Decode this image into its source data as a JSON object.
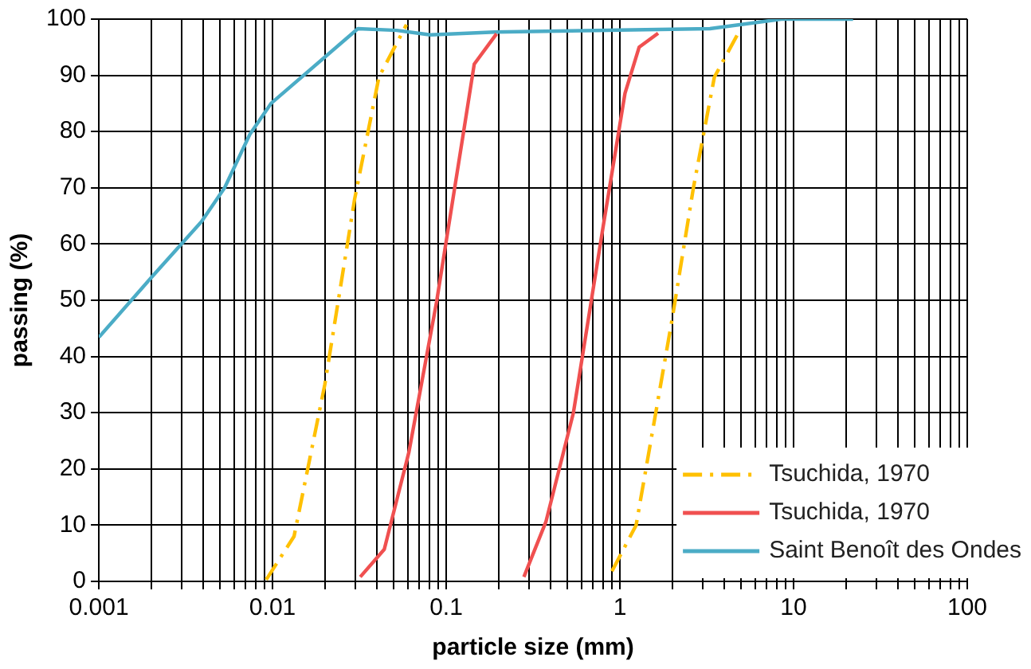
{
  "chart_data": {
    "type": "line",
    "xlabel": "particle size (mm)",
    "ylabel": "passing (%)",
    "log": "x",
    "xlim": [
      0.001,
      100
    ],
    "ylim": [
      0,
      100
    ],
    "xticks": [
      0.001,
      {
        "value": 0.002,
        "label": null
      },
      {
        "value": 0.003,
        "label": null
      },
      {
        "value": 0.004,
        "label": null
      },
      {
        "value": 0.005,
        "label": null
      },
      {
        "value": 0.006,
        "label": null
      },
      {
        "value": 0.007,
        "label": null
      },
      {
        "value": 0.008,
        "label": null
      },
      {
        "value": 0.009,
        "label": null
      },
      0.01,
      {
        "value": 0.02,
        "label": null
      },
      {
        "value": 0.03,
        "label": null
      },
      {
        "value": 0.04,
        "label": null
      },
      {
        "value": 0.05,
        "label": null
      },
      {
        "value": 0.06,
        "label": null
      },
      {
        "value": 0.07,
        "label": null
      },
      {
        "value": 0.08,
        "label": null
      },
      {
        "value": 0.09,
        "label": null
      },
      0.1,
      {
        "value": 0.2,
        "label": null
      },
      {
        "value": 0.3,
        "label": null
      },
      {
        "value": 0.4,
        "label": null
      },
      {
        "value": 0.5,
        "label": null
      },
      {
        "value": 0.6,
        "label": null
      },
      {
        "value": 0.7,
        "label": null
      },
      {
        "value": 0.8,
        "label": null
      },
      {
        "value": 0.9,
        "label": null
      },
      1,
      {
        "value": 2,
        "label": null
      },
      {
        "value": 3,
        "label": null
      },
      {
        "value": 4,
        "label": null
      },
      {
        "value": 5,
        "label": null
      },
      {
        "value": 6,
        "label": null
      },
      {
        "value": 7,
        "label": null
      },
      {
        "value": 8,
        "label": null
      },
      {
        "value": 9,
        "label": null
      },
      10,
      {
        "value": 20,
        "label": null
      },
      {
        "value": 30,
        "label": null
      },
      {
        "value": 40,
        "label": null
      },
      {
        "value": 50,
        "label": null
      },
      {
        "value": 60,
        "label": null
      },
      {
        "value": 70,
        "label": null
      },
      {
        "value": 80,
        "label": null
      },
      {
        "value": 90,
        "label": null
      },
      100
    ],
    "yticks": [
      0,
      10,
      20,
      30,
      40,
      50,
      60,
      70,
      80,
      90,
      100
    ],
    "grid": true,
    "legend": "bottom right",
    "marker": "none",
    "series": [
      {
        "name": "Tsuchida, 1970",
        "color": "#ffc000",
        "line_style": "dashed",
        "x": [
          0.0092,
          0.0133,
          0.02,
          0.0297,
          0.041,
          0.059
        ],
        "values": [
          0.3,
          8,
          35,
          68,
          89.7,
          99
        ]
      },
      {
        "color": "#ffc000",
        "line_style": "dashed",
        "x": [
          0.9,
          1.24,
          2.0,
          2.65,
          3.5,
          4.9
        ],
        "values": [
          1.8,
          10,
          46.7,
          70,
          89.7,
          98
        ]
      },
      {
        "name": "Tsuchida, 1970",
        "color": "#f05050",
        "line_style": "solid",
        "x": [
          0.032,
          0.044,
          0.061,
          0.088,
          0.126,
          0.145,
          0.195
        ],
        "values": [
          0.8,
          5.7,
          23,
          49.7,
          80,
          92,
          97.4
        ]
      },
      {
        "color": "#f05050",
        "line_style": "solid",
        "x": [
          0.28,
          0.375,
          0.54,
          0.8,
          1.07,
          1.29,
          1.66
        ],
        "values": [
          0.8,
          10.6,
          30,
          63,
          86.8,
          95,
          97.5
        ]
      },
      {
        "name": "Saint Benoît des Ondes",
        "color": "#4bacc6",
        "line_style": "solid",
        "x": [
          0.001,
          0.002,
          0.0039,
          0.0053,
          0.0074,
          0.0098,
          0.031,
          0.052,
          0.081,
          0.19,
          3.3,
          8.5,
          22
        ],
        "values": [
          43.4,
          54,
          64,
          70,
          79.5,
          85,
          98.3,
          98,
          97.2,
          97.7,
          98.3,
          100,
          100
        ]
      }
    ]
  }
}
